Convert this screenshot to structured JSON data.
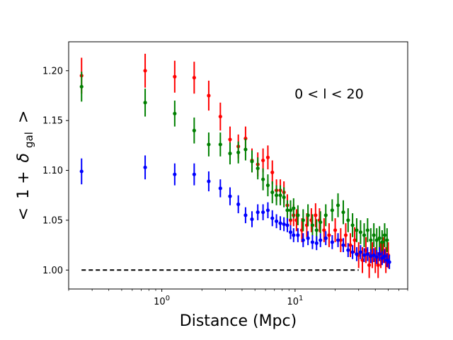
{
  "chart_data": {
    "type": "scatter",
    "title": "",
    "xlabel": "Distance (Mpc)",
    "ylabel_parts": {
      "lt": "<",
      "one_plus": "1 +",
      "delta": "δ",
      "subscript": "gal",
      "gt": ">"
    },
    "ylabel": "< 1 + δ_gal >",
    "xscale": "log",
    "xlim": [
      0.2,
      70
    ],
    "ylim": [
      0.981,
      1.229
    ],
    "x_ticks": [
      {
        "value": 1,
        "base": "10",
        "exp": "0"
      },
      {
        "value": 10,
        "base": "10",
        "exp": "1"
      }
    ],
    "y_ticks": [
      {
        "value": 1.0,
        "label": "1.00"
      },
      {
        "value": 1.05,
        "label": "1.05"
      },
      {
        "value": 1.1,
        "label": "1.10"
      },
      {
        "value": 1.15,
        "label": "1.15"
      },
      {
        "value": 1.2,
        "label": "1.20"
      }
    ],
    "annotation": {
      "text": "0 < l < 20",
      "x": 18,
      "y": 1.172
    },
    "reference_line": {
      "y": 1.0,
      "x_range": [
        0.25,
        30
      ],
      "style": "dashed",
      "color": "#000000"
    },
    "series": [
      {
        "name": "red",
        "color": "#ff0000",
        "x": [
          0.25,
          0.75,
          1.25,
          1.75,
          2.25,
          2.75,
          3.25,
          3.75,
          4.25,
          4.75,
          5.25,
          5.75,
          6.25,
          6.75,
          7.25,
          7.75,
          8.25,
          8.75,
          9.25,
          9.75,
          10.25,
          11.25,
          12.25,
          13.25,
          14.25,
          15.25,
          16.5,
          18,
          20,
          22,
          24,
          26,
          28,
          30,
          32,
          34,
          36,
          38,
          40,
          42,
          44,
          46,
          48,
          50
        ],
        "y": [
          1.195,
          1.2,
          1.194,
          1.193,
          1.175,
          1.154,
          1.131,
          1.124,
          1.132,
          1.11,
          1.106,
          1.11,
          1.113,
          1.098,
          1.08,
          1.08,
          1.078,
          1.065,
          1.05,
          1.055,
          1.05,
          1.04,
          1.045,
          1.05,
          1.055,
          1.05,
          1.04,
          1.035,
          1.04,
          1.03,
          1.035,
          1.025,
          1.03,
          1.015,
          1.01,
          1.02,
          1.005,
          1.015,
          1.01,
          1.005,
          1.015,
          1.02,
          1.01,
          1.015
        ],
        "err": [
          0.018,
          0.017,
          0.016,
          0.016,
          0.015,
          0.014,
          0.013,
          0.012,
          0.012,
          0.012,
          0.012,
          0.012,
          0.012,
          0.012,
          0.011,
          0.011,
          0.011,
          0.011,
          0.011,
          0.011,
          0.011,
          0.012,
          0.012,
          0.012,
          0.012,
          0.012,
          0.012,
          0.012,
          0.012,
          0.012,
          0.012,
          0.012,
          0.013,
          0.013,
          0.013,
          0.013,
          0.013,
          0.013,
          0.013,
          0.013,
          0.013,
          0.013,
          0.013,
          0.013
        ]
      },
      {
        "name": "green",
        "color": "#008000",
        "x": [
          0.25,
          0.75,
          1.25,
          1.75,
          2.25,
          2.75,
          3.25,
          3.75,
          4.25,
          4.75,
          5.25,
          5.75,
          6.25,
          6.75,
          7.25,
          7.75,
          8.25,
          8.75,
          9.25,
          9.75,
          10.5,
          11.5,
          12.5,
          13.5,
          14.5,
          15.5,
          17,
          19,
          21,
          23,
          25,
          27,
          29,
          31,
          33,
          35,
          37,
          39,
          41,
          43,
          45,
          47,
          49
        ],
        "y": [
          1.184,
          1.168,
          1.157,
          1.14,
          1.126,
          1.126,
          1.117,
          1.118,
          1.121,
          1.109,
          1.102,
          1.091,
          1.085,
          1.078,
          1.075,
          1.075,
          1.073,
          1.06,
          1.06,
          1.062,
          1.055,
          1.05,
          1.055,
          1.045,
          1.04,
          1.048,
          1.055,
          1.06,
          1.065,
          1.058,
          1.05,
          1.045,
          1.04,
          1.038,
          1.035,
          1.04,
          1.03,
          1.035,
          1.03,
          1.032,
          1.028,
          1.035,
          1.03
        ],
        "err": [
          0.015,
          0.014,
          0.013,
          0.013,
          0.012,
          0.012,
          0.011,
          0.011,
          0.011,
          0.011,
          0.011,
          0.011,
          0.011,
          0.011,
          0.01,
          0.01,
          0.01,
          0.01,
          0.01,
          0.01,
          0.01,
          0.011,
          0.011,
          0.011,
          0.011,
          0.011,
          0.011,
          0.011,
          0.012,
          0.012,
          0.012,
          0.012,
          0.012,
          0.012,
          0.012,
          0.012,
          0.012,
          0.012,
          0.012,
          0.012,
          0.012,
          0.012,
          0.012
        ]
      },
      {
        "name": "blue",
        "color": "#0000ff",
        "x": [
          0.25,
          0.75,
          1.25,
          1.75,
          2.25,
          2.75,
          3.25,
          3.75,
          4.25,
          4.75,
          5.25,
          5.75,
          6.25,
          6.75,
          7.25,
          7.75,
          8.25,
          8.75,
          9.25,
          9.75,
          10.5,
          11.5,
          12.5,
          13.5,
          14.5,
          15.5,
          17,
          19,
          21,
          23,
          25,
          27,
          29,
          31,
          33,
          35,
          37,
          39,
          41,
          43,
          45,
          47,
          49,
          51
        ],
        "y": [
          1.099,
          1.103,
          1.096,
          1.096,
          1.089,
          1.082,
          1.074,
          1.066,
          1.055,
          1.051,
          1.058,
          1.058,
          1.06,
          1.052,
          1.049,
          1.047,
          1.046,
          1.045,
          1.038,
          1.035,
          1.035,
          1.03,
          1.032,
          1.028,
          1.027,
          1.03,
          1.032,
          1.028,
          1.03,
          1.025,
          1.02,
          1.018,
          1.016,
          1.018,
          1.015,
          1.016,
          1.014,
          1.015,
          1.013,
          1.016,
          1.012,
          1.014,
          1.01,
          1.008
        ],
        "err": [
          0.013,
          0.012,
          0.011,
          0.011,
          0.01,
          0.009,
          0.009,
          0.009,
          0.008,
          0.008,
          0.008,
          0.008,
          0.008,
          0.008,
          0.007,
          0.007,
          0.007,
          0.007,
          0.007,
          0.007,
          0.007,
          0.007,
          0.007,
          0.007,
          0.007,
          0.007,
          0.007,
          0.007,
          0.007,
          0.007,
          0.007,
          0.007,
          0.007,
          0.007,
          0.007,
          0.007,
          0.007,
          0.007,
          0.007,
          0.007,
          0.007,
          0.007,
          0.007,
          0.007
        ]
      }
    ]
  }
}
